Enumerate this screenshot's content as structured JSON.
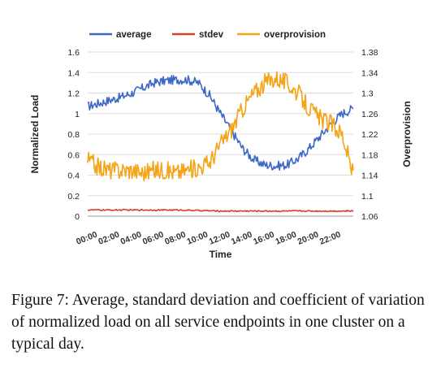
{
  "chart_data": {
    "type": "line",
    "title": "",
    "xlabel": "Time",
    "ylabel_left": "Normalized Load",
    "ylabel_right": "Overprovision",
    "x_ticks": [
      "00:00",
      "02:00",
      "04:00",
      "06:00",
      "08:00",
      "10:00",
      "12:00",
      "14:00",
      "16:00",
      "18:00",
      "20:00",
      "22:00"
    ],
    "x_range_hours": [
      0,
      24
    ],
    "y_left_ticks": [
      "0",
      "0.2",
      "0.4",
      "0.6",
      "0.8",
      "1",
      "1.2",
      "1.4",
      "1.6"
    ],
    "y_left_range": [
      0,
      1.6
    ],
    "y_right_ticks": [
      "1.06",
      "1.1",
      "1.14",
      "1.18",
      "1.22",
      "1.26",
      "1.3",
      "1.34",
      "1.38"
    ],
    "y_right_range": [
      1.06,
      1.38
    ],
    "grid": true,
    "legend_position": "top",
    "series": [
      {
        "name": "average",
        "axis": "left",
        "color": "#3b68c8",
        "x": [
          0,
          1,
          2,
          3,
          4,
          5,
          6,
          7,
          8,
          9,
          10,
          11,
          12,
          13,
          14,
          15,
          16,
          17,
          18,
          19,
          20,
          21,
          22,
          23,
          24
        ],
        "values": [
          1.07,
          1.1,
          1.13,
          1.16,
          1.2,
          1.25,
          1.3,
          1.32,
          1.33,
          1.33,
          1.3,
          1.18,
          1.0,
          0.83,
          0.66,
          0.55,
          0.5,
          0.49,
          0.5,
          0.56,
          0.66,
          0.78,
          0.9,
          1.0,
          1.05
        ]
      },
      {
        "name": "stdev",
        "axis": "left",
        "color": "#d9402b",
        "x": [
          0,
          4,
          8,
          12,
          16,
          20,
          24
        ],
        "values": [
          0.06,
          0.06,
          0.06,
          0.05,
          0.05,
          0.05,
          0.05
        ]
      },
      {
        "name": "overprovision",
        "axis": "right",
        "color": "#f5a418",
        "x": [
          0,
          1,
          2,
          3,
          4,
          5,
          6,
          7,
          8,
          9,
          10,
          11,
          12,
          13,
          14,
          15,
          16,
          17,
          18,
          19,
          20,
          21,
          22,
          23,
          24
        ],
        "values": [
          1.17,
          1.155,
          1.15,
          1.15,
          1.15,
          1.145,
          1.15,
          1.15,
          1.145,
          1.15,
          1.155,
          1.165,
          1.2,
          1.23,
          1.27,
          1.3,
          1.32,
          1.33,
          1.32,
          1.3,
          1.27,
          1.25,
          1.24,
          1.22,
          1.14
        ]
      }
    ]
  },
  "caption": "Figure 7: Average, standard deviation and coefficient of variation of normalized load on all service endpoints in one cluster on a typical day."
}
